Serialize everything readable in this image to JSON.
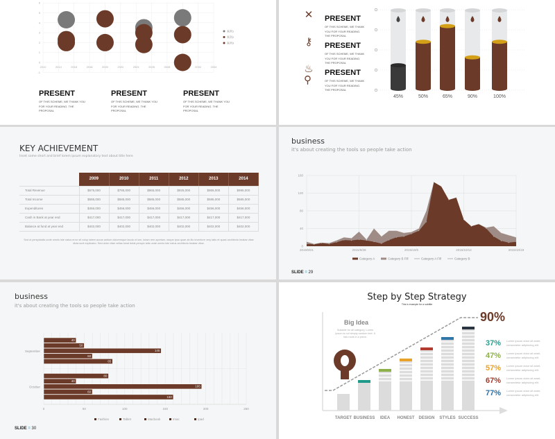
{
  "slide1": {
    "present_blocks": [
      {
        "title": "PRESENT",
        "text": "OF THIS SCHEME, WE THANK YOU FOR YOUR READING. THE PROPOSAL"
      },
      {
        "title": "PRESENT",
        "text": "OF THIS SCHEME, WE THANK YOU FOR YOUR READING. THE PROPOSAL"
      },
      {
        "title": "PRESENT",
        "text": "OF THIS SCHEME, WE THANK YOU FOR YOUR READING. THE PROPOSAL"
      }
    ]
  },
  "slide2": {
    "items": [
      {
        "icon": "tools-icon",
        "title": "PRESENT",
        "text": "OF THIS SCHEME, WE THANK YOU FOR YOUR READING. THE PROPOSAL"
      },
      {
        "icon": "key-icon",
        "title": "PRESENT",
        "text": "OF THIS SCHEME, WE THANK YOU FOR YOUR READING. THE PROPOSAL"
      },
      {
        "icon": "faucet-icon",
        "title": "PRESENT",
        "text": "OF THIS SCHEME, WE THANK YOU FOR YOUR READING. THE PROPOSAL"
      }
    ]
  },
  "slide3": {
    "title": "KEY ACHIEVEMENT",
    "subtitle": "Inset some short and brief lorem ipsum explanatory text about title here",
    "columns": [
      "2009",
      "2010",
      "2011",
      "2012",
      "2013",
      "2014"
    ],
    "rows": [
      {
        "label": "Total Revenue",
        "values": [
          "$675,000",
          "$785,000",
          "$865,000",
          "$925,000",
          "$965,000",
          "$995,000"
        ]
      },
      {
        "label": "Total Income",
        "values": [
          "$585,000",
          "$585,000",
          "$585,000",
          "$585,000",
          "$585,000",
          "$585,000"
        ]
      },
      {
        "label": "Expenditures",
        "values": [
          "$456,000",
          "$456,000",
          "$456,000",
          "$456,000",
          "$456,000",
          "$456,000"
        ]
      },
      {
        "label": "Cash in Bank at year end",
        "values": [
          "$417,000",
          "$417,000",
          "$417,000",
          "$417,000",
          "$417,000",
          "$417,000"
        ]
      },
      {
        "label": "Balance at fund at year end",
        "values": [
          "$402,000",
          "$402,000",
          "$402,000",
          "$402,000",
          "$402,000",
          "$402,000"
        ]
      }
    ],
    "footer": "Sed ut perspiciatis unde omnis iste natus error sit volup tatem accus antium doloremque lauda nt ium, totam rem aperiam, eaque ipsa quae ab illo inventore very tatis et quasi architecto beatae vitae dicta sunt explicabo. Sed dolor vitae vellas keral belat perspic iatis unde omnis iste natus architecto beatae vitae."
  },
  "slide4": {
    "title": "business",
    "subtitle": "it's about creating the tools so people take action",
    "slide_label": "SLIDE",
    "slide_number": "29"
  },
  "slide5": {
    "title": "business",
    "subtitle": "it's about creating the tools so people take action",
    "slide_label": "SLIDE",
    "slide_number": "30"
  },
  "slide6": {
    "title": "Step by Step Strategy",
    "subtitle": "This is example for a subtitle",
    "idea_title": "Big Idea",
    "idea_text": "Suitable for all category, Lorem Ipsum is not simply random text. It has roots in a piece.",
    "headline_pct": "90%",
    "steps": [
      "TARGET",
      "BUSINESS",
      "IDEA",
      "HONEST",
      "DESIGN",
      "STYLES",
      "SUCCESS"
    ],
    "step_colors": [
      "#d9d9d9",
      "#1f9a8a",
      "#8db04a",
      "#e8a22a",
      "#b33a2e",
      "#2e77a8",
      "#2a3340"
    ],
    "stats": [
      {
        "pct": "37%",
        "color": "#2a9d8f",
        "text": "Lorem ipsum dolor sit amet, consectetur adipiscing elit."
      },
      {
        "pct": "47%",
        "color": "#8db04a",
        "text": "Lorem ipsum dolor sit amet, consectetur adipiscing elit."
      },
      {
        "pct": "57%",
        "color": "#e8a22a",
        "text": "Lorem ipsum dolor sit amet, consectetur adipiscing elit."
      },
      {
        "pct": "67%",
        "color": "#9e3a2e",
        "text": "Lorem ipsum dolor sit amet, consectetur adipiscing elit."
      },
      {
        "pct": "77%",
        "color": "#2e6fa3",
        "text": "Lorem ipsum dolor sit amet, consectetur adipiscing elit."
      }
    ]
  },
  "colors": {
    "brown": "#6b3a28",
    "gray": "#7a7a7a",
    "gold": "#d4a017",
    "dark": "#3a3a3a"
  },
  "chart_data": [
    {
      "type": "scatter",
      "title": "",
      "xlim": [
        2012,
        2034
      ],
      "ylim": [
        -1,
        6
      ],
      "xticks": [
        "2012",
        "2014",
        "2016",
        "2018",
        "2020",
        "2022",
        "2024",
        "2026",
        "2028",
        "2030",
        "2032",
        "2034"
      ],
      "yticks": [
        "-1",
        "0",
        "1",
        "2",
        "3",
        "4",
        "5",
        "6"
      ],
      "legend": "right",
      "series": [
        {
          "name": "系列1",
          "color": "#7a7a7a",
          "points": [
            [
              2015,
              4.3
            ],
            [
              2025,
              3.5
            ],
            [
              2030,
              4.5
            ]
          ]
        },
        {
          "name": "系列2",
          "color": "#6b3a28",
          "points": [
            [
              2015,
              2.3
            ],
            [
              2020,
              4.4
            ],
            [
              2025,
              3.0
            ],
            [
              2030,
              2.8
            ]
          ]
        },
        {
          "name": "系列3",
          "color": "#6b3a28",
          "points": [
            [
              2015,
              2.0
            ],
            [
              2020,
              2.0
            ],
            [
              2025,
              1.8
            ],
            [
              2030,
              0
            ]
          ]
        }
      ]
    },
    {
      "type": "bar",
      "title": "",
      "categories": [
        "45%",
        "50%",
        "65%",
        "90%",
        "100%"
      ],
      "fill_levels": [
        0.3,
        0.6,
        0.8,
        0.4,
        0.6
      ]
    },
    {
      "type": "area",
      "title": "",
      "ylim": [
        0,
        160
      ],
      "yticks": [
        "0",
        "40",
        "80",
        "120",
        "160"
      ],
      "xticks": [
        "2015/9/21",
        "2015/9/28",
        "2015/10/5",
        "2015/10/12",
        "2015/10/19"
      ],
      "legend": "bottom",
      "legend_entries": [
        "Category A",
        "Category B Fill",
        "Category A Fill",
        "Category B"
      ],
      "series": [
        {
          "name": "Category B",
          "color": "#a08c86",
          "values": [
            10,
            5,
            8,
            7,
            13,
            20,
            18,
            33,
            15,
            40,
            22,
            35,
            35,
            30,
            32,
            40,
            80,
            145,
            135,
            100,
            110,
            60,
            45,
            50,
            42,
            45,
            30,
            25,
            20
          ]
        },
        {
          "name": "Category A",
          "color": "#6b3a28",
          "values": [
            5,
            4,
            7,
            5,
            9,
            14,
            13,
            15,
            13,
            10,
            6,
            14,
            20,
            22,
            28,
            35,
            55,
            145,
            135,
            105,
            110,
            60,
            45,
            50,
            40,
            22,
            12,
            8,
            10
          ]
        }
      ]
    },
    {
      "type": "bar",
      "orientation": "horizontal",
      "title": "",
      "xlim": [
        0,
        250
      ],
      "xticks": [
        "0",
        "50",
        "100",
        "150",
        "200",
        "250"
      ],
      "categories": [
        "September",
        "October"
      ],
      "legend": "bottom",
      "series": [
        {
          "name": "Fashion",
          "values": [
            40,
            80
          ]
        },
        {
          "name": "Tablet",
          "values": [
            50,
            40
          ]
        },
        {
          "name": "Macbook",
          "values": [
            145,
            195
          ]
        },
        {
          "name": "Imac",
          "values": [
            60,
            60
          ]
        },
        {
          "name": "Ipad",
          "values": [
            85,
            160
          ]
        }
      ]
    }
  ]
}
